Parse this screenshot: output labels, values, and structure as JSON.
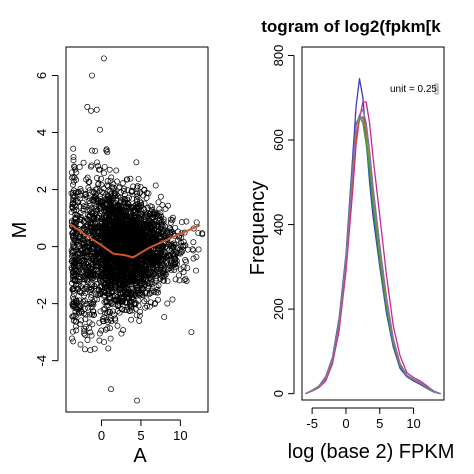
{
  "chart_data": [
    {
      "type": "scatter",
      "title": "",
      "xlabel": "A",
      "ylabel": "M",
      "xlim": [
        -4.5,
        13.5
      ],
      "ylim": [
        -5.8,
        7.0
      ],
      "xticks": [
        0,
        5,
        10
      ],
      "xtick_labels": [
        "0",
        "5",
        "10"
      ],
      "yticks": [
        -4,
        -2,
        0,
        2,
        4,
        6
      ],
      "ytick_labels": [
        "-4",
        "-2",
        "0",
        "2",
        "4",
        "6"
      ],
      "grid": false,
      "point_style": "open-circle",
      "point_color": "#000000",
      "approx_point_count": 3000,
      "notable_points": [
        {
          "x": 0.3,
          "y": 6.6
        },
        {
          "x": -1.2,
          "y": 6.0
        },
        {
          "x": -1.8,
          "y": 4.9
        },
        {
          "x": -0.6,
          "y": 4.8
        },
        {
          "x": -0.2,
          "y": 4.1
        },
        {
          "x": 4.5,
          "y": -5.4
        },
        {
          "x": 1.2,
          "y": -5.0
        },
        {
          "x": -3.2,
          "y": 2.6
        },
        {
          "x": 11.4,
          "y": -3.0
        }
      ],
      "loess_fit": {
        "color": "#d2552a",
        "points": [
          {
            "x": -4.0,
            "y": 0.8
          },
          {
            "x": -2.0,
            "y": 0.4
          },
          {
            "x": 0.0,
            "y": 0.05
          },
          {
            "x": 1.5,
            "y": -0.25
          },
          {
            "x": 3.0,
            "y": -0.3
          },
          {
            "x": 4.0,
            "y": -0.38
          },
          {
            "x": 6.0,
            "y": -0.05
          },
          {
            "x": 8.0,
            "y": 0.2
          },
          {
            "x": 10.0,
            "y": 0.45
          },
          {
            "x": 12.5,
            "y": 0.75
          }
        ]
      }
    },
    {
      "type": "line",
      "title": "togram of log2(fpkm[k",
      "xlabel": "log (base 2) FPKM",
      "ylabel": "Frequency",
      "xlim": [
        -6.5,
        14.5
      ],
      "ylim": [
        -15,
        820
      ],
      "xticks": [
        -5,
        0,
        5,
        10
      ],
      "xtick_labels": [
        "-5",
        "0",
        "5",
        "10"
      ],
      "yticks": [
        0,
        200,
        400,
        600,
        800
      ],
      "ytick_labels": [
        "0",
        "200",
        "400",
        "600",
        "800"
      ],
      "grid": false,
      "annotation": "unit = 0.25",
      "x": [
        -6,
        -5,
        -4,
        -3,
        -2,
        -1,
        0,
        1,
        1.5,
        2,
        2.5,
        3,
        3.5,
        4,
        5,
        6,
        7,
        8,
        9,
        10,
        11,
        12,
        13,
        14
      ],
      "series": [
        {
          "color": "#3b3bbf",
          "values": [
            0,
            8,
            18,
            40,
            85,
            180,
            330,
            560,
            680,
            745,
            700,
            600,
            500,
            420,
            300,
            190,
            110,
            60,
            40,
            30,
            22,
            12,
            4,
            0
          ]
        },
        {
          "color": "#c8288c",
          "values": [
            0,
            6,
            14,
            30,
            70,
            150,
            290,
            480,
            590,
            650,
            690,
            690,
            640,
            560,
            420,
            280,
            160,
            90,
            50,
            38,
            30,
            18,
            6,
            0
          ]
        },
        {
          "color": "#d2552a",
          "values": [
            0,
            7,
            16,
            34,
            76,
            162,
            308,
            512,
            610,
            652,
            655,
            625,
            570,
            488,
            350,
            228,
            130,
            72,
            44,
            34,
            26,
            15,
            5,
            0
          ]
        },
        {
          "color": "#2e8b57",
          "values": [
            0,
            7,
            16,
            36,
            80,
            170,
            320,
            540,
            640,
            655,
            640,
            590,
            520,
            440,
            310,
            200,
            115,
            64,
            42,
            32,
            24,
            13,
            4,
            0
          ]
        },
        {
          "color": "#6a9a2a",
          "values": [
            0,
            8,
            17,
            38,
            82,
            172,
            322,
            536,
            636,
            650,
            650,
            606,
            545,
            462,
            328,
            212,
            122,
            68,
            43,
            33,
            25,
            14,
            5,
            0
          ]
        },
        {
          "color": "#8a6bb5",
          "values": [
            0,
            7,
            15,
            35,
            78,
            168,
            316,
            528,
            632,
            660,
            672,
            640,
            575,
            490,
            350,
            226,
            128,
            70,
            44,
            34,
            26,
            15,
            5,
            0
          ]
        }
      ]
    }
  ]
}
